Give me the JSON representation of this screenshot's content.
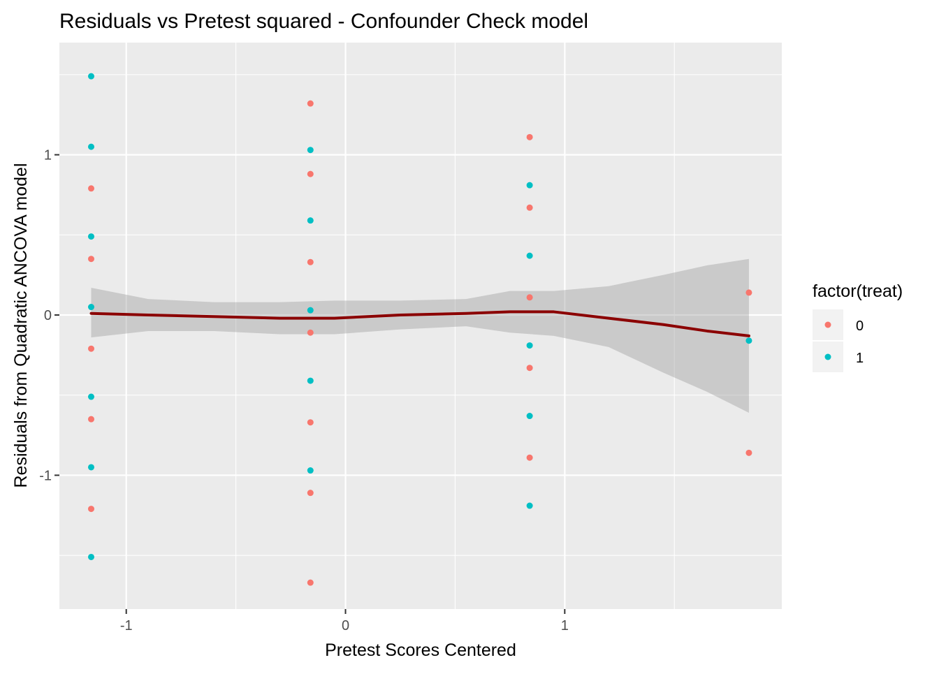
{
  "chart_data": {
    "type": "scatter",
    "title": "Residuals vs Pretest squared - Confounder Check model",
    "xlabel": "Pretest Scores Centered",
    "ylabel": "Residuals from Quadratic ANCOVA model",
    "xlim": [
      -1.305,
      1.99
    ],
    "ylim": [
      -1.835,
      1.7
    ],
    "x_ticks": [
      -1,
      0,
      1
    ],
    "x_tick_labels": [
      "-1",
      "0",
      "1"
    ],
    "y_ticks": [
      -1,
      0,
      1
    ],
    "y_tick_labels": [
      "-1",
      "0",
      "1"
    ],
    "grid": true,
    "legend": {
      "title": "factor(treat)",
      "placement": "right",
      "entries": [
        {
          "label": "0",
          "color": "#F8766D"
        },
        {
          "label": "1",
          "color": "#00BFC4"
        }
      ]
    },
    "series": [
      {
        "name": "0",
        "color": "#F8766D",
        "points": [
          [
            -1.16,
            0.79
          ],
          [
            -1.16,
            0.35
          ],
          [
            -1.16,
            -0.21
          ],
          [
            -1.16,
            -0.65
          ],
          [
            -1.16,
            -1.21
          ],
          [
            -0.16,
            1.32
          ],
          [
            -0.16,
            0.88
          ],
          [
            -0.16,
            0.33
          ],
          [
            -0.16,
            -0.11
          ],
          [
            -0.16,
            -0.67
          ],
          [
            -0.16,
            -1.11
          ],
          [
            -0.16,
            -1.67
          ],
          [
            0.84,
            1.11
          ],
          [
            0.84,
            0.67
          ],
          [
            0.84,
            0.11
          ],
          [
            0.84,
            -0.33
          ],
          [
            0.84,
            -0.89
          ],
          [
            1.84,
            0.14
          ],
          [
            1.84,
            -0.86
          ]
        ]
      },
      {
        "name": "1",
        "color": "#00BFC4",
        "points": [
          [
            -1.16,
            1.49
          ],
          [
            -1.16,
            1.05
          ],
          [
            -1.16,
            0.49
          ],
          [
            -1.16,
            0.05
          ],
          [
            -1.16,
            -0.51
          ],
          [
            -1.16,
            -0.95
          ],
          [
            -1.16,
            -1.51
          ],
          [
            -0.16,
            1.03
          ],
          [
            -0.16,
            0.59
          ],
          [
            -0.16,
            0.03
          ],
          [
            -0.16,
            -0.41
          ],
          [
            -0.16,
            -0.97
          ],
          [
            0.84,
            0.81
          ],
          [
            0.84,
            0.37
          ],
          [
            0.84,
            -0.19
          ],
          [
            0.84,
            -0.63
          ],
          [
            0.84,
            -1.19
          ],
          [
            1.84,
            -0.16
          ]
        ]
      }
    ],
    "smooth": {
      "color": "#8B0000",
      "band_color": "#999999",
      "points": [
        [
          -1.16,
          0.01,
          -0.14,
          0.17
        ],
        [
          -0.9,
          0.0,
          -0.1,
          0.1
        ],
        [
          -0.6,
          -0.01,
          -0.1,
          0.08
        ],
        [
          -0.3,
          -0.02,
          -0.12,
          0.08
        ],
        [
          -0.05,
          -0.02,
          -0.12,
          0.09
        ],
        [
          0.25,
          0.0,
          -0.09,
          0.09
        ],
        [
          0.55,
          0.01,
          -0.07,
          0.1
        ],
        [
          0.75,
          0.02,
          -0.11,
          0.15
        ],
        [
          0.95,
          0.02,
          -0.13,
          0.15
        ],
        [
          1.2,
          -0.02,
          -0.2,
          0.18
        ],
        [
          1.45,
          -0.06,
          -0.36,
          0.25
        ],
        [
          1.65,
          -0.1,
          -0.48,
          0.31
        ],
        [
          1.84,
          -0.13,
          -0.61,
          0.35
        ]
      ]
    }
  }
}
